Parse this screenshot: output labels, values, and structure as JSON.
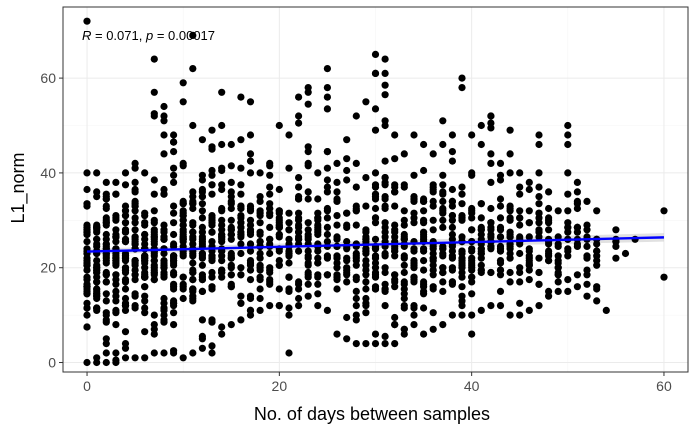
{
  "chart_data": {
    "type": "scatter",
    "title": "",
    "xlabel": "No. of days between samples",
    "ylabel": "L1_norm",
    "xlim": [
      -2.5,
      62.5
    ],
    "ylim": [
      -2,
      75
    ],
    "x_ticks": [
      0,
      20,
      40,
      60
    ],
    "y_ticks": [
      0,
      20,
      40,
      60
    ],
    "grid": true,
    "legend": "none",
    "annotation": {
      "r_symbol": "R",
      "r_text": " = 0.071, ",
      "p_symbol": "p",
      "p_text": " = 0.00017"
    },
    "point_color": "#000000",
    "trend_color": "#0000ff",
    "band_color": "#c8c8c8",
    "trend_line": {
      "x": [
        0,
        60
      ],
      "y": [
        23.4,
        26.4
      ],
      "ci_lower": [
        22.8,
        25.5
      ],
      "ci_upper": [
        24.0,
        27.3
      ]
    },
    "outliers": [
      {
        "x": 0,
        "y": 72
      },
      {
        "x": 7,
        "y": 64
      },
      {
        "x": 8,
        "y": 54
      },
      {
        "x": 10,
        "y": 59
      },
      {
        "x": 11,
        "y": 69
      },
      {
        "x": 11,
        "y": 62
      },
      {
        "x": 14,
        "y": 57
      },
      {
        "x": 16,
        "y": 56
      },
      {
        "x": 17,
        "y": 55
      },
      {
        "x": 21,
        "y": 2
      },
      {
        "x": 22,
        "y": 56
      },
      {
        "x": 23,
        "y": 58
      },
      {
        "x": 25,
        "y": 62
      },
      {
        "x": 30,
        "y": 65
      },
      {
        "x": 31,
        "y": 64
      },
      {
        "x": 37,
        "y": 51
      },
      {
        "x": 39,
        "y": 60
      },
      {
        "x": 40,
        "y": 6
      },
      {
        "x": 42,
        "y": 52
      },
      {
        "x": 44,
        "y": 49
      },
      {
        "x": 47,
        "y": 48
      },
      {
        "x": 50,
        "y": 50
      },
      {
        "x": 54,
        "y": 11
      },
      {
        "x": 60,
        "y": 32
      },
      {
        "x": 60,
        "y": 18
      },
      {
        "x": 57,
        "y": 26
      },
      {
        "x": 56,
        "y": 23
      }
    ],
    "columns": [
      {
        "x": 0,
        "min": 0,
        "max": 40,
        "n": 42
      },
      {
        "x": 1,
        "min": 0,
        "max": 40,
        "n": 40
      },
      {
        "x": 2,
        "min": 0,
        "max": 38,
        "n": 38
      },
      {
        "x": 3,
        "min": 0,
        "max": 38,
        "n": 36
      },
      {
        "x": 4,
        "min": 1,
        "max": 40,
        "n": 36
      },
      {
        "x": 5,
        "min": 1,
        "max": 42,
        "n": 35
      },
      {
        "x": 6,
        "min": 1,
        "max": 40,
        "n": 34
      },
      {
        "x": 7,
        "min": 2,
        "max": 57,
        "n": 34
      },
      {
        "x": 8,
        "min": 2,
        "max": 52,
        "n": 33
      },
      {
        "x": 9,
        "min": 2,
        "max": 48,
        "n": 32
      },
      {
        "x": 10,
        "min": 1,
        "max": 55,
        "n": 32
      },
      {
        "x": 11,
        "min": 2,
        "max": 50,
        "n": 30
      },
      {
        "x": 12,
        "min": 3,
        "max": 47,
        "n": 30
      },
      {
        "x": 13,
        "min": 2,
        "max": 49,
        "n": 28
      },
      {
        "x": 14,
        "min": 6,
        "max": 50,
        "n": 27
      },
      {
        "x": 15,
        "min": 8,
        "max": 46,
        "n": 26
      },
      {
        "x": 16,
        "min": 9,
        "max": 47,
        "n": 25
      },
      {
        "x": 17,
        "min": 10,
        "max": 48,
        "n": 24
      },
      {
        "x": 18,
        "min": 11,
        "max": 40,
        "n": 22
      },
      {
        "x": 19,
        "min": 12,
        "max": 42,
        "n": 21
      },
      {
        "x": 20,
        "min": 12,
        "max": 50,
        "n": 22
      },
      {
        "x": 21,
        "min": 10,
        "max": 48,
        "n": 21
      },
      {
        "x": 22,
        "min": 12,
        "max": 52,
        "n": 22
      },
      {
        "x": 23,
        "min": 14,
        "max": 57,
        "n": 22
      },
      {
        "x": 24,
        "min": 12,
        "max": 40,
        "n": 20
      },
      {
        "x": 25,
        "min": 11,
        "max": 58,
        "n": 20
      },
      {
        "x": 26,
        "min": 6,
        "max": 42,
        "n": 18
      },
      {
        "x": 27,
        "min": 5,
        "max": 47,
        "n": 18
      },
      {
        "x": 28,
        "min": 4,
        "max": 52,
        "n": 22
      },
      {
        "x": 29,
        "min": 4,
        "max": 55,
        "n": 24
      },
      {
        "x": 30,
        "min": 4,
        "max": 61,
        "n": 30
      },
      {
        "x": 31,
        "min": 4,
        "max": 61,
        "n": 30
      },
      {
        "x": 32,
        "min": 4,
        "max": 48,
        "n": 26
      },
      {
        "x": 33,
        "min": 6,
        "max": 44,
        "n": 24
      },
      {
        "x": 34,
        "min": 8,
        "max": 48,
        "n": 24
      },
      {
        "x": 35,
        "min": 6,
        "max": 46,
        "n": 22
      },
      {
        "x": 36,
        "min": 7,
        "max": 44,
        "n": 22
      },
      {
        "x": 37,
        "min": 8,
        "max": 46,
        "n": 22
      },
      {
        "x": 38,
        "min": 10,
        "max": 48,
        "n": 22
      },
      {
        "x": 39,
        "min": 10,
        "max": 58,
        "n": 24
      },
      {
        "x": 40,
        "min": 10,
        "max": 48,
        "n": 22
      },
      {
        "x": 41,
        "min": 11,
        "max": 50,
        "n": 20
      },
      {
        "x": 42,
        "min": 12,
        "max": 52,
        "n": 20
      },
      {
        "x": 43,
        "min": 12,
        "max": 42,
        "n": 18
      },
      {
        "x": 44,
        "min": 10,
        "max": 44,
        "n": 18
      },
      {
        "x": 45,
        "min": 10,
        "max": 40,
        "n": 16
      },
      {
        "x": 46,
        "min": 11,
        "max": 38,
        "n": 15
      },
      {
        "x": 47,
        "min": 12,
        "max": 46,
        "n": 16
      },
      {
        "x": 48,
        "min": 14,
        "max": 36,
        "n": 14
      },
      {
        "x": 49,
        "min": 15,
        "max": 32,
        "n": 12
      },
      {
        "x": 50,
        "min": 15,
        "max": 48,
        "n": 14
      },
      {
        "x": 51,
        "min": 16,
        "max": 38,
        "n": 12
      },
      {
        "x": 52,
        "min": 14,
        "max": 34,
        "n": 11
      },
      {
        "x": 53,
        "min": 13,
        "max": 32,
        "n": 10
      },
      {
        "x": 55,
        "min": 22,
        "max": 28,
        "n": 4
      }
    ]
  }
}
